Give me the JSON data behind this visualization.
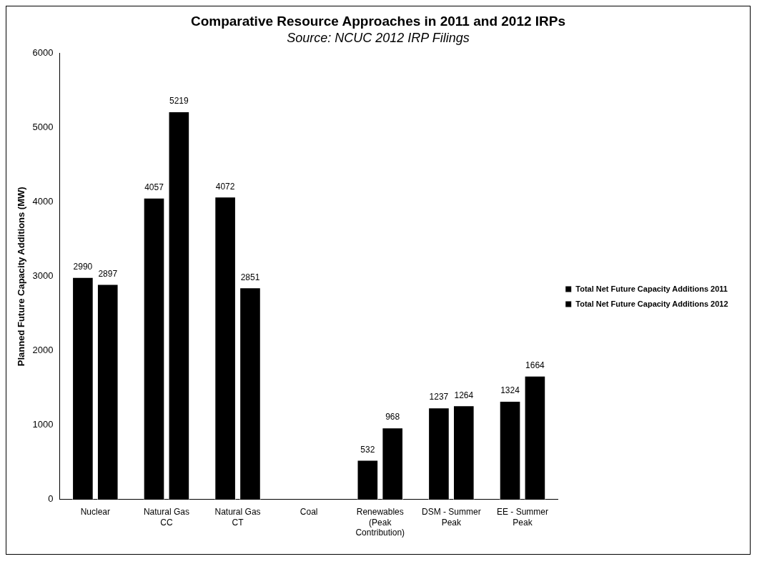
{
  "chart_data": {
    "type": "bar",
    "title": "Comparative Resource Approaches in 2011 and 2012 IRPs",
    "subtitle": "Source: NCUC 2012 IRP Filings",
    "ylabel": "Planned Future Capacity Additions (MW)",
    "categories": [
      "Nuclear",
      "Natural Gas CC",
      "Natural Gas CT",
      "Coal",
      "Renewables (Peak Contribution)",
      "DSM - Summer Peak",
      "EE - Summer Peak"
    ],
    "series": [
      {
        "name": "Total Net Future Capacity Additions 2011",
        "color": "#000000",
        "values": [
          2990,
          4057,
          4072,
          0,
          532,
          1237,
          1324
        ],
        "value_labels": [
          "2990",
          "4057",
          "4072",
          null,
          "532",
          "1237",
          "1324"
        ]
      },
      {
        "name": "Total Net Future Capacity Additions 2012",
        "color": "#000000",
        "values": [
          2897,
          5219,
          2851,
          0,
          968,
          1264,
          1664
        ],
        "value_labels": [
          "2897",
          "5219",
          "2851",
          null,
          "968",
          "1264",
          "1664"
        ]
      }
    ],
    "ylim": [
      0,
      6000
    ],
    "yticks": [
      0,
      1000,
      2000,
      3000,
      4000,
      5000,
      6000
    ],
    "grid": false,
    "legend": "right"
  }
}
